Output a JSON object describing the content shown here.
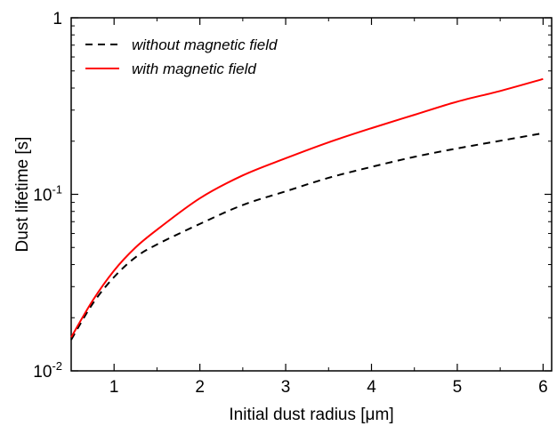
{
  "chart_data": {
    "type": "line",
    "xlabel": "Initial dust radius [μm]",
    "ylabel": "Dust lifetime [s]",
    "xlim": [
      0.5,
      6.1
    ],
    "ylim": [
      0.01,
      1
    ],
    "yscale": "log",
    "x_ticks": [
      1,
      2,
      3,
      4,
      5,
      6
    ],
    "x_tick_labels": [
      "1",
      "2",
      "3",
      "4",
      "5",
      "6"
    ],
    "y_ticks": [
      0.01,
      0.1,
      1
    ],
    "y_tick_labels": [
      {
        "base": "10",
        "exp": "-2"
      },
      {
        "base": "10",
        "exp": "-1"
      },
      {
        "base": "1",
        "exp": ""
      }
    ],
    "grid": false,
    "legend_position": "top-left",
    "series": [
      {
        "name": "without magnetic field",
        "color": "#000000",
        "dash": "dashed",
        "x": [
          0.5,
          0.75,
          1.0,
          1.25,
          1.5,
          2.0,
          2.5,
          3.0,
          3.5,
          4.0,
          4.5,
          5.0,
          5.5,
          6.0
        ],
        "y": [
          0.015,
          0.024,
          0.034,
          0.044,
          0.052,
          0.068,
          0.087,
          0.104,
          0.124,
          0.143,
          0.163,
          0.182,
          0.201,
          0.222
        ]
      },
      {
        "name": "with magnetic field",
        "color": "#ff0000",
        "dash": "solid",
        "x": [
          0.5,
          0.75,
          1.0,
          1.25,
          1.5,
          2.0,
          2.5,
          3.0,
          3.5,
          4.0,
          4.5,
          5.0,
          5.5,
          6.0
        ],
        "y": [
          0.0155,
          0.025,
          0.037,
          0.05,
          0.063,
          0.095,
          0.128,
          0.16,
          0.197,
          0.237,
          0.282,
          0.335,
          0.385,
          0.45
        ]
      }
    ]
  }
}
